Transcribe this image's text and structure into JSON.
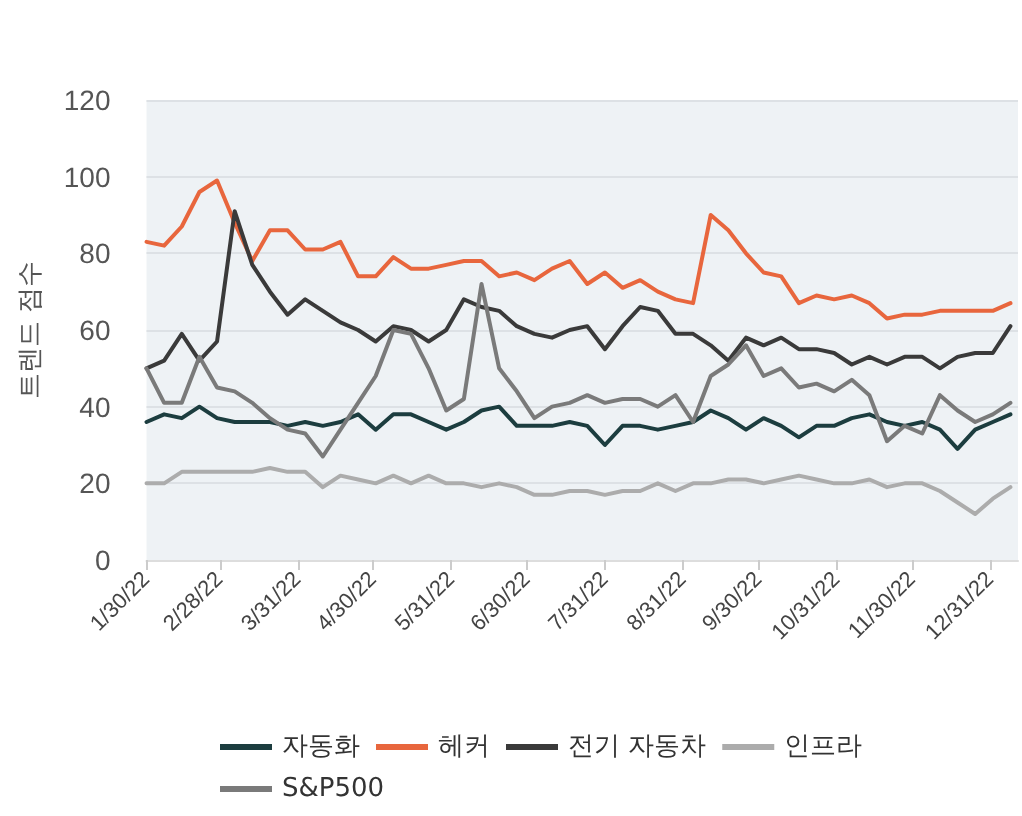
{
  "chart_data": {
    "type": "line",
    "ylabel": "트렌드 점수",
    "x": [
      "2022-01-30",
      "2022-02-06",
      "2022-02-13",
      "2022-02-20",
      "2022-02-27",
      "2022-03-06",
      "2022-03-13",
      "2022-03-20",
      "2022-03-27",
      "2022-04-03",
      "2022-04-10",
      "2022-04-17",
      "2022-04-24",
      "2022-05-01",
      "2022-05-08",
      "2022-05-15",
      "2022-05-22",
      "2022-05-29",
      "2022-06-05",
      "2022-06-12",
      "2022-06-19",
      "2022-06-26",
      "2022-07-03",
      "2022-07-10",
      "2022-07-17",
      "2022-07-24",
      "2022-07-31",
      "2022-08-07",
      "2022-08-14",
      "2022-08-21",
      "2022-08-28",
      "2022-09-04",
      "2022-09-11",
      "2022-09-18",
      "2022-09-25",
      "2022-10-02",
      "2022-10-09",
      "2022-10-16",
      "2022-10-23",
      "2022-10-30",
      "2022-11-06",
      "2022-11-13",
      "2022-11-20",
      "2022-11-27",
      "2022-12-04",
      "2022-12-11",
      "2022-12-18",
      "2022-12-25",
      "2023-01-01",
      "2023-01-08"
    ],
    "series": [
      {
        "name": "자동화",
        "color": "#1c3d3f",
        "values": [
          36,
          38,
          37,
          40,
          37,
          36,
          36,
          36,
          35,
          36,
          35,
          36,
          38,
          34,
          38,
          38,
          36,
          34,
          36,
          39,
          40,
          35,
          35,
          35,
          36,
          35,
          30,
          35,
          35,
          34,
          35,
          36,
          39,
          37,
          34,
          37,
          35,
          32,
          35,
          35,
          37,
          38,
          36,
          35,
          36,
          34,
          29,
          34,
          36,
          38
        ]
      },
      {
        "name": "헤커",
        "color": "#e8663d",
        "values": [
          83,
          82,
          87,
          96,
          99,
          88,
          78,
          86,
          86,
          81,
          81,
          83,
          74,
          74,
          79,
          76,
          76,
          77,
          78,
          78,
          74,
          75,
          73,
          76,
          78,
          72,
          75,
          71,
          73,
          70,
          68,
          67,
          90,
          86,
          80,
          75,
          74,
          67,
          69,
          68,
          69,
          67,
          63,
          64,
          64,
          65,
          65,
          65,
          65,
          67
        ]
      },
      {
        "name": "전기 자동차",
        "color": "#3a3a3a",
        "values": [
          50,
          52,
          59,
          52,
          57,
          91,
          77,
          70,
          64,
          68,
          65,
          62,
          60,
          57,
          61,
          60,
          57,
          60,
          68,
          66,
          65,
          61,
          59,
          58,
          60,
          61,
          55,
          61,
          66,
          65,
          59,
          59,
          56,
          52,
          58,
          56,
          58,
          55,
          55,
          54,
          51,
          53,
          51,
          53,
          53,
          50,
          53,
          54,
          54,
          61
        ]
      },
      {
        "name": "인프라",
        "color": "#acacac",
        "values": [
          20,
          20,
          23,
          23,
          23,
          23,
          23,
          24,
          23,
          23,
          19,
          22,
          21,
          20,
          22,
          20,
          22,
          20,
          20,
          19,
          20,
          19,
          17,
          17,
          18,
          18,
          17,
          18,
          18,
          20,
          18,
          20,
          20,
          21,
          21,
          20,
          21,
          22,
          21,
          20,
          20,
          21,
          19,
          20,
          20,
          18,
          15,
          12,
          16,
          19
        ]
      },
      {
        "name": "S&P500",
        "color": "#7a7a7a",
        "values": [
          50,
          41,
          41,
          53,
          45,
          44,
          41,
          37,
          34,
          33,
          27,
          34,
          41,
          48,
          60,
          59,
          50,
          39,
          42,
          72,
          50,
          44,
          37,
          40,
          41,
          43,
          41,
          42,
          42,
          40,
          43,
          36,
          48,
          51,
          56,
          48,
          50,
          45,
          46,
          44,
          47,
          43,
          31,
          35,
          33,
          43,
          39,
          36,
          38,
          41
        ]
      }
    ],
    "xlim": [
      "2022-01-30",
      "2023-01-11"
    ],
    "xticks": [
      {
        "value": "2022-01-30",
        "label": "1/30/22"
      },
      {
        "value": "2022-02-28",
        "label": "2/28/22"
      },
      {
        "value": "2022-03-31",
        "label": "3/31/22"
      },
      {
        "value": "2022-04-30",
        "label": "4/30/22"
      },
      {
        "value": "2022-05-31",
        "label": "5/31/22"
      },
      {
        "value": "2022-06-30",
        "label": "6/30/22"
      },
      {
        "value": "2022-07-31",
        "label": "7/31/22"
      },
      {
        "value": "2022-08-31",
        "label": "8/31/22"
      },
      {
        "value": "2022-09-30",
        "label": "9/30/22"
      },
      {
        "value": "2022-10-31",
        "label": "10/31/22"
      },
      {
        "value": "2022-11-30",
        "label": "11/30/22"
      },
      {
        "value": "2022-12-31",
        "label": "12/31/22"
      }
    ],
    "ylim": [
      0,
      120
    ],
    "yticks": [
      0,
      20,
      40,
      60,
      80,
      100,
      120
    ],
    "grid": "y",
    "legend": "bottom",
    "marker": "none",
    "line_style": "solid"
  }
}
